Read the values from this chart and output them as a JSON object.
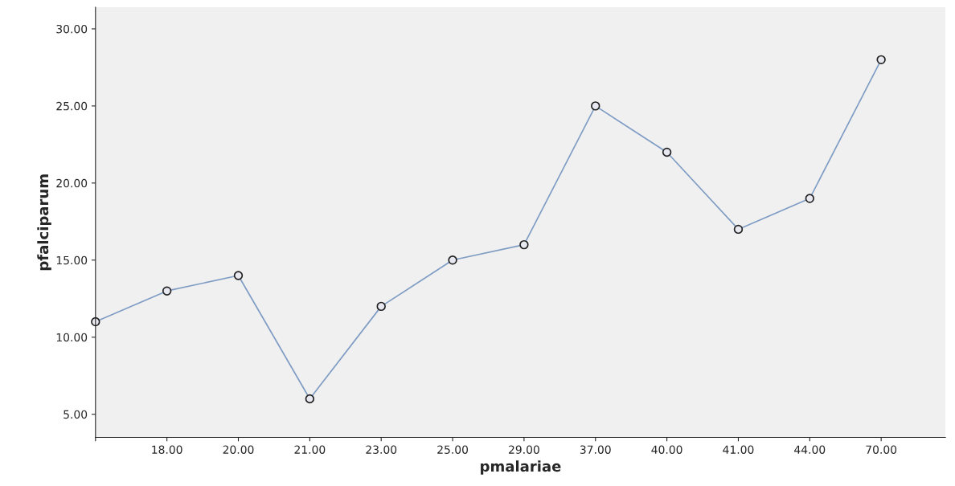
{
  "chart_data": {
    "type": "line",
    "xlabel": "pmalariae",
    "ylabel": "pfalciparum",
    "categories": [
      null,
      "18.00",
      "20.00",
      "21.00",
      "23.00",
      "25.00",
      "29.00",
      "37.00",
      "40.00",
      "41.00",
      "44.00",
      "70.00"
    ],
    "series": [
      {
        "color": "#7f9cc4",
        "values": [
          11,
          13,
          14,
          6,
          12,
          15,
          16,
          25,
          22,
          17,
          19,
          28
        ]
      }
    ],
    "ylim": [
      3.5,
      31.4
    ],
    "yticks": [
      {
        "value": 5,
        "label": "5.00"
      },
      {
        "value": 10,
        "label": "10.00"
      },
      {
        "value": 15,
        "label": "15.00"
      },
      {
        "value": 20,
        "label": "20.00"
      },
      {
        "value": 25,
        "label": "25.00"
      },
      {
        "value": 30,
        "label": "30.00"
      }
    ],
    "marker": "circle",
    "grid": false,
    "legend": false
  }
}
